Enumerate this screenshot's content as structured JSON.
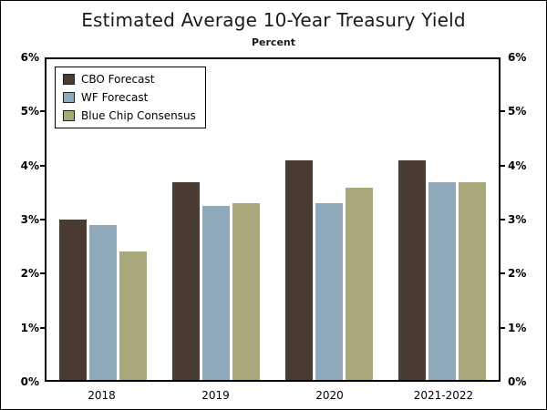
{
  "chart_data": {
    "type": "bar",
    "title": "Estimated Average 10-Year Treasury Yield",
    "subtitle": "Percent",
    "categories": [
      "2018",
      "2019",
      "2020",
      "2021-2022"
    ],
    "series": [
      {
        "name": "CBO Forecast",
        "color": "#4a3c33",
        "values": [
          3.0,
          3.7,
          4.1,
          4.1
        ]
      },
      {
        "name": "WF Forecast",
        "color": "#8fa8ba",
        "values": [
          2.9,
          3.25,
          3.3,
          3.7
        ]
      },
      {
        "name": "Blue Chip Consensus",
        "color": "#a9a87b",
        "values": [
          2.4,
          3.3,
          3.6,
          3.7
        ]
      }
    ],
    "ylim": [
      0,
      6
    ],
    "ytick_step": 1,
    "ytick_labels": [
      "0%",
      "1%",
      "2%",
      "3%",
      "4%",
      "5%",
      "6%"
    ],
    "grid": false,
    "legend_position": "top-left",
    "axis_color": "#000000",
    "background_color": "#ffffff"
  }
}
